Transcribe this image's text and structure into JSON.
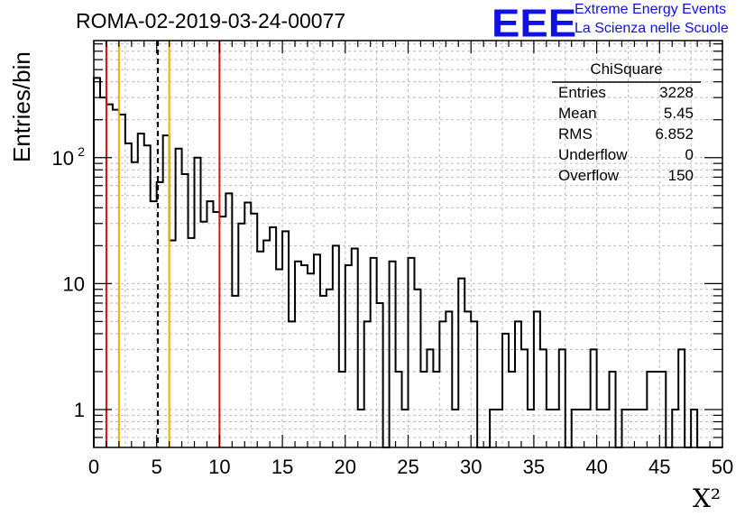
{
  "header": {
    "run_title": "ROMA-02-2019-03-24-00077",
    "logo": "EEE",
    "logo_line1": "Extreme Energy Events",
    "logo_line2": "La Scienza nelle Scuole"
  },
  "colors": {
    "histogram": "#000000",
    "outer_cut": "#dd1111",
    "inner_cut": "#f0b000",
    "dashed_line": "#000000",
    "grid": "#bbbbbb",
    "logo": "#1010e6"
  },
  "chart_data": {
    "type": "bar",
    "subtype": "step-histogram",
    "xlabel": "X²",
    "ylabel": "Entries/bin",
    "xlim": [
      0,
      50
    ],
    "ylim": [
      0.5,
      850
    ],
    "log_y": true,
    "grid": true,
    "bin_width": 0.5,
    "x_ticks": [
      0,
      5,
      10,
      15,
      20,
      25,
      30,
      35,
      40,
      45,
      50
    ],
    "y_ticks": [
      {
        "value": 1,
        "label": "1"
      },
      {
        "value": 10,
        "label": "10"
      },
      {
        "value": 100,
        "label": "10",
        "sup": "2"
      }
    ],
    "values": [
      430,
      300,
      265,
      240,
      220,
      130,
      92,
      155,
      125,
      45,
      64,
      150,
      22,
      118,
      74,
      23,
      100,
      31,
      45,
      37,
      34,
      52,
      8,
      30,
      44,
      36,
      18,
      22,
      28,
      13,
      26,
      5,
      15,
      14,
      12,
      17,
      8,
      9,
      20,
      2,
      14,
      19,
      1,
      5,
      16,
      7,
      0,
      15,
      2,
      1,
      16,
      9,
      2,
      3,
      2,
      5,
      6,
      1,
      11,
      6,
      5,
      0,
      0,
      1,
      1,
      4,
      2,
      5,
      3,
      1,
      6,
      3,
      1,
      1,
      3,
      0,
      1,
      1,
      1,
      3,
      1,
      1,
      2,
      0,
      1,
      1,
      1,
      1,
      2,
      2,
      2,
      0,
      1,
      3,
      0,
      1,
      0,
      0,
      0,
      0
    ],
    "vertical_lines": [
      {
        "x": 1,
        "style": "solid",
        "color": "#dd1111"
      },
      {
        "x": 2,
        "style": "solid",
        "color": "#f0b000"
      },
      {
        "x": 5.1,
        "style": "dashed",
        "color": "#000000"
      },
      {
        "x": 6,
        "style": "solid",
        "color": "#f0b000"
      },
      {
        "x": 10,
        "style": "solid",
        "color": "#dd1111"
      }
    ]
  },
  "stats": {
    "title": "ChiSquare",
    "rows": [
      {
        "key": "Entries",
        "value": "3228"
      },
      {
        "key": "Mean",
        "value": "5.45"
      },
      {
        "key": "RMS",
        "value": "6.852"
      },
      {
        "key": "Underflow",
        "value": "0"
      },
      {
        "key": "Overflow",
        "value": "150"
      }
    ]
  }
}
